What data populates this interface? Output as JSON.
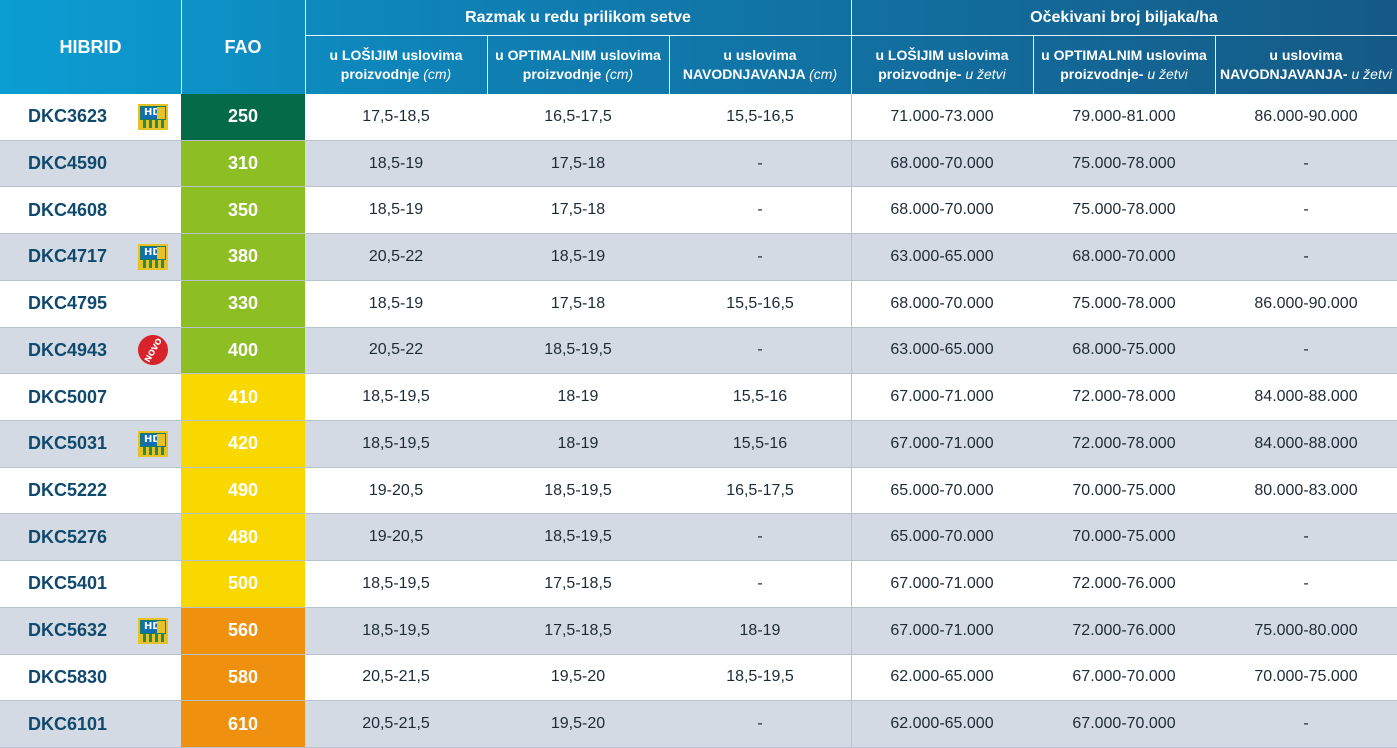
{
  "headers": {
    "hibrid": "HIBRID",
    "fao": "FAO",
    "group_spacing": "Razmak u redu prilikom setve",
    "group_plants": "Očekivani broj biljaka/ha",
    "s1_a": "u LOŠIJIM uslovima",
    "s1_b": "proizvodnje",
    "s1_c": "(cm)",
    "s2_a": "u OPTIMALNIM uslovima",
    "s2_b": "proizvodnje",
    "s2_c": "(cm)",
    "s3_a": "u uslovima",
    "s3_b": "NAVODNJAVANJA",
    "s3_c": "(cm)",
    "p1_a": "u LOŠIJIM uslovima",
    "p1_b": "proizvodnje-",
    "p1_c": "u žetvi",
    "p2_a": "u OPTIMALNIM uslovima",
    "p2_b": "proizvodnje-",
    "p2_c": "u žetvi",
    "p3_a": "u uslovima",
    "p3_b": "NAVODNJAVANJA-",
    "p3_c": "u žetvi"
  },
  "badges": {
    "hd": "HD",
    "novo": "NOVO"
  },
  "colors": {
    "header_start": "#0b9ed3",
    "header_end": "#155a86",
    "fao_dark_green": "#046a48",
    "fao_green": "#8dbe24",
    "fao_yellow": "#f9d800",
    "fao_orange": "#f0900f",
    "row_gray": "#d4dae3",
    "name_blue": "#0f4a6e"
  },
  "rows": [
    {
      "name": "DKC3623",
      "badge": "hd",
      "fao": "250",
      "fao_color": "#046a48",
      "s1": "17,5-18,5",
      "s2": "16,5-17,5",
      "s3": "15,5-16,5",
      "p1": "71.000-73.000",
      "p2": "79.000-81.000",
      "p3": "86.000-90.000"
    },
    {
      "name": "DKC4590",
      "badge": "",
      "fao": "310",
      "fao_color": "#8dbe24",
      "s1": "18,5-19",
      "s2": "17,5-18",
      "s3": "-",
      "p1": "68.000-70.000",
      "p2": "75.000-78.000",
      "p3": "-"
    },
    {
      "name": "DKC4608",
      "badge": "",
      "fao": "350",
      "fao_color": "#8dbe24",
      "s1": "18,5-19",
      "s2": "17,5-18",
      "s3": "-",
      "p1": "68.000-70.000",
      "p2": "75.000-78.000",
      "p3": "-"
    },
    {
      "name": "DKC4717",
      "badge": "hd",
      "fao": "380",
      "fao_color": "#8dbe24",
      "s1": "20,5-22",
      "s2": "18,5-19",
      "s3": "-",
      "p1": "63.000-65.000",
      "p2": "68.000-70.000",
      "p3": "-"
    },
    {
      "name": "DKC4795",
      "badge": "",
      "fao": "330",
      "fao_color": "#8dbe24",
      "s1": "18,5-19",
      "s2": "17,5-18",
      "s3": "15,5-16,5",
      "p1": "68.000-70.000",
      "p2": "75.000-78.000",
      "p3": "86.000-90.000"
    },
    {
      "name": "DKC4943",
      "badge": "novo",
      "fao": "400",
      "fao_color": "#8dbe24",
      "s1": "20,5-22",
      "s2": "18,5-19,5",
      "s3": "-",
      "p1": "63.000-65.000",
      "p2": "68.000-75.000",
      "p3": "-"
    },
    {
      "name": "DKC5007",
      "badge": "",
      "fao": "410",
      "fao_color": "#f9d800",
      "s1": "18,5-19,5",
      "s2": "18-19",
      "s3": "15,5-16",
      "p1": "67.000-71.000",
      "p2": "72.000-78.000",
      "p3": "84.000-88.000"
    },
    {
      "name": "DKC5031",
      "badge": "hd",
      "fao": "420",
      "fao_color": "#f9d800",
      "s1": "18,5-19,5",
      "s2": "18-19",
      "s3": "15,5-16",
      "p1": "67.000-71.000",
      "p2": "72.000-78.000",
      "p3": "84.000-88.000"
    },
    {
      "name": "DKC5222",
      "badge": "",
      "fao": "490",
      "fao_color": "#f9d800",
      "s1": "19-20,5",
      "s2": "18,5-19,5",
      "s3": "16,5-17,5",
      "p1": "65.000-70.000",
      "p2": "70.000-75.000",
      "p3": "80.000-83.000"
    },
    {
      "name": "DKC5276",
      "badge": "",
      "fao": "480",
      "fao_color": "#f9d800",
      "s1": "19-20,5",
      "s2": "18,5-19,5",
      "s3": "-",
      "p1": "65.000-70.000",
      "p2": "70.000-75.000",
      "p3": "-"
    },
    {
      "name": "DKC5401",
      "badge": "",
      "fao": "500",
      "fao_color": "#f9d800",
      "s1": "18,5-19,5",
      "s2": "17,5-18,5",
      "s3": "-",
      "p1": "67.000-71.000",
      "p2": "72.000-76.000",
      "p3": "-"
    },
    {
      "name": "DKC5632",
      "badge": "hd",
      "fao": "560",
      "fao_color": "#f0900f",
      "s1": "18,5-19,5",
      "s2": "17,5-18,5",
      "s3": "18-19",
      "p1": "67.000-71.000",
      "p2": "72.000-76.000",
      "p3": "75.000-80.000"
    },
    {
      "name": "DKC5830",
      "badge": "",
      "fao": "580",
      "fao_color": "#f0900f",
      "s1": "20,5-21,5",
      "s2": "19,5-20",
      "s3": "18,5-19,5",
      "p1": "62.000-65.000",
      "p2": "67.000-70.000",
      "p3": "70.000-75.000"
    },
    {
      "name": "DKC6101",
      "badge": "",
      "fao": "610",
      "fao_color": "#f0900f",
      "s1": "20,5-21,5",
      "s2": "19,5-20",
      "s3": "-",
      "p1": "62.000-65.000",
      "p2": "67.000-70.000",
      "p3": "-"
    }
  ]
}
